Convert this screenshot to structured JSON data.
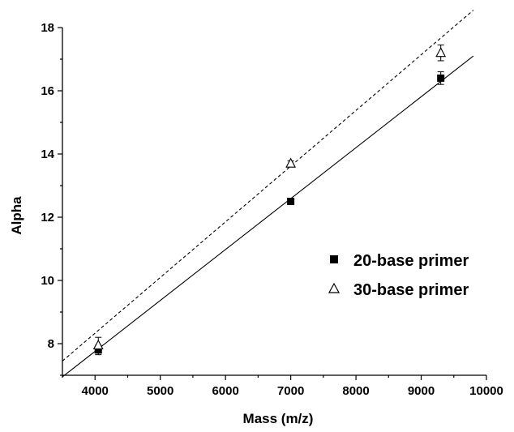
{
  "chart_data": {
    "type": "scatter",
    "title": "",
    "xlabel": "Mass (m/z)",
    "ylabel": "Alpha",
    "xlim": [
      3500,
      10000
    ],
    "ylim": [
      7,
      18
    ],
    "x_ticks": [
      4000,
      5000,
      6000,
      7000,
      8000,
      9000,
      10000
    ],
    "y_ticks": [
      8,
      10,
      12,
      14,
      16,
      18
    ],
    "grid": false,
    "legend_position": "right",
    "series": [
      {
        "name": "20-base primer",
        "marker": "filled-square",
        "color": "#000000",
        "x": [
          4050,
          7000,
          9300
        ],
        "y": [
          7.8,
          12.5,
          16.4
        ],
        "error": [
          0.15,
          0.05,
          0.2
        ],
        "fit": {
          "line_style": "solid",
          "x": [
            3500,
            9800
          ],
          "y": [
            6.95,
            17.1
          ]
        }
      },
      {
        "name": "30-base primer",
        "marker": "open-triangle",
        "color": "#000000",
        "x": [
          4050,
          7000,
          9300
        ],
        "y": [
          7.95,
          13.7,
          17.2
        ],
        "error": [
          0.25,
          0.08,
          0.25
        ],
        "fit": {
          "line_style": "dashed",
          "x": [
            3500,
            9800
          ],
          "y": [
            7.45,
            18.55
          ]
        }
      }
    ]
  }
}
